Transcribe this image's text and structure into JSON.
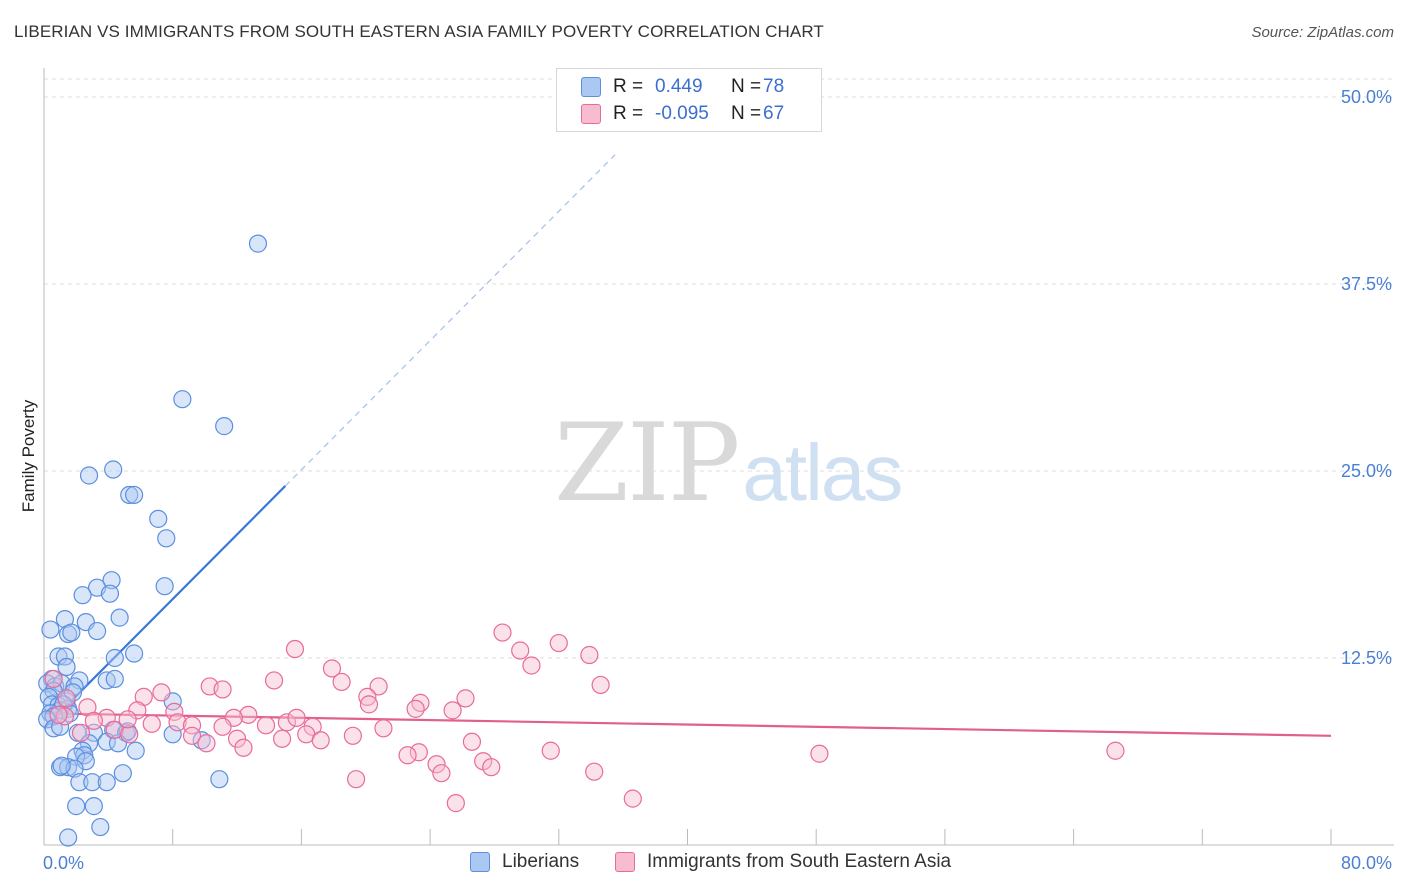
{
  "title": "LIBERIAN VS IMMIGRANTS FROM SOUTH EASTERN ASIA FAMILY POVERTY CORRELATION CHART",
  "source": "Source: ZipAtlas.com",
  "watermark": {
    "zip": "ZIP",
    "atlas": "atlas"
  },
  "colors": {
    "blue": "#5b8fe0",
    "blue_fill": "#aac8f2",
    "pink": "#e86b9a",
    "pink_fill": "#f7bcd0",
    "axis_text": "#4a7fd4"
  },
  "legend_top": {
    "rows": [
      {
        "r_label": "R =",
        "r_value": "0.449",
        "n_label": "N =",
        "n_value": "78"
      },
      {
        "r_label": "R =",
        "r_value": "-0.095",
        "n_label": "N =",
        "n_value": "67"
      }
    ]
  },
  "legend_bottom": {
    "series1": "Liberians",
    "series2": "Immigrants from South Eastern Asia"
  },
  "chart_data": {
    "type": "scatter",
    "title": "LIBERIAN VS IMMIGRANTS FROM SOUTH EASTERN ASIA FAMILY POVERTY CORRELATION CHART",
    "xlabel": "",
    "ylabel": "Family Poverty",
    "xlim": [
      0,
      80
    ],
    "ylim": [
      0,
      50
    ],
    "x_tick_labels": [
      "0.0%",
      "80.0%"
    ],
    "y_ticks": [
      12.5,
      25.0,
      37.5,
      50.0
    ],
    "y_tick_labels": [
      "12.5%",
      "25.0%",
      "37.5%",
      "50.0%"
    ],
    "grid": true,
    "series": [
      {
        "name": "Liberians",
        "r": 0.449,
        "n": 78,
        "trend": {
          "x0": 0,
          "y0": 7.8,
          "x1": 15.0,
          "y1": 24.0,
          "dashed_to_x": 35.5
        },
        "points": [
          [
            13.3,
            40.2
          ],
          [
            8.6,
            29.8
          ],
          [
            11.2,
            28.0
          ],
          [
            2.8,
            24.7
          ],
          [
            4.3,
            25.1
          ],
          [
            5.3,
            23.4
          ],
          [
            5.6,
            23.4
          ],
          [
            7.1,
            21.8
          ],
          [
            7.6,
            20.5
          ],
          [
            4.2,
            17.7
          ],
          [
            3.3,
            17.2
          ],
          [
            7.5,
            17.3
          ],
          [
            2.4,
            16.7
          ],
          [
            4.1,
            16.8
          ],
          [
            1.3,
            15.1
          ],
          [
            2.6,
            14.9
          ],
          [
            4.7,
            15.2
          ],
          [
            0.4,
            14.4
          ],
          [
            1.5,
            14.1
          ],
          [
            1.7,
            14.2
          ],
          [
            3.3,
            14.3
          ],
          [
            5.6,
            12.8
          ],
          [
            0.9,
            12.6
          ],
          [
            1.3,
            12.6
          ],
          [
            4.4,
            12.5
          ],
          [
            1.4,
            11.9
          ],
          [
            0.5,
            11.1
          ],
          [
            2.2,
            11.0
          ],
          [
            3.9,
            11.0
          ],
          [
            4.4,
            11.1
          ],
          [
            0.2,
            10.8
          ],
          [
            0.7,
            10.6
          ],
          [
            1.1,
            10.8
          ],
          [
            1.9,
            10.6
          ],
          [
            0.6,
            10.3
          ],
          [
            0.3,
            9.9
          ],
          [
            1.4,
            9.6
          ],
          [
            1.8,
            10.2
          ],
          [
            8.0,
            9.6
          ],
          [
            0.5,
            9.4
          ],
          [
            0.9,
            9.3
          ],
          [
            1.0,
            9.0
          ],
          [
            1.5,
            9.1
          ],
          [
            1.2,
            9.4
          ],
          [
            0.4,
            8.8
          ],
          [
            1.6,
            8.8
          ],
          [
            0.6,
            8.6
          ],
          [
            0.2,
            8.4
          ],
          [
            3.1,
            7.5
          ],
          [
            0.6,
            7.8
          ],
          [
            4.3,
            7.7
          ],
          [
            5.1,
            7.5
          ],
          [
            2.1,
            7.5
          ],
          [
            5.2,
            7.6
          ],
          [
            1.0,
            7.9
          ],
          [
            8.0,
            7.4
          ],
          [
            2.8,
            6.8
          ],
          [
            3.9,
            6.9
          ],
          [
            4.6,
            6.8
          ],
          [
            9.8,
            7.0
          ],
          [
            2.4,
            6.3
          ],
          [
            2.5,
            6.0
          ],
          [
            5.7,
            6.3
          ],
          [
            2.0,
            5.9
          ],
          [
            2.6,
            5.6
          ],
          [
            1.0,
            5.2
          ],
          [
            1.5,
            5.2
          ],
          [
            1.9,
            5.1
          ],
          [
            4.9,
            4.8
          ],
          [
            2.2,
            4.2
          ],
          [
            3.0,
            4.2
          ],
          [
            3.9,
            4.2
          ],
          [
            10.9,
            4.4
          ],
          [
            2.0,
            2.6
          ],
          [
            3.1,
            2.6
          ],
          [
            3.5,
            1.2
          ],
          [
            1.5,
            0.5
          ],
          [
            1.1,
            5.3
          ]
        ]
      },
      {
        "name": "Immigrants from South Eastern Asia",
        "r": -0.095,
        "n": 67,
        "trend": {
          "x0": 0,
          "y0": 8.8,
          "x1": 80,
          "y1": 7.3
        },
        "points": [
          [
            28.5,
            14.2
          ],
          [
            32.0,
            13.5
          ],
          [
            15.6,
            13.1
          ],
          [
            29.6,
            13.0
          ],
          [
            33.9,
            12.7
          ],
          [
            30.3,
            12.0
          ],
          [
            17.9,
            11.8
          ],
          [
            14.3,
            11.0
          ],
          [
            18.5,
            10.9
          ],
          [
            20.8,
            10.6
          ],
          [
            34.6,
            10.7
          ],
          [
            10.3,
            10.6
          ],
          [
            11.1,
            10.4
          ],
          [
            7.3,
            10.2
          ],
          [
            6.2,
            9.9
          ],
          [
            20.1,
            9.9
          ],
          [
            26.2,
            9.8
          ],
          [
            23.4,
            9.5
          ],
          [
            20.2,
            9.4
          ],
          [
            23.1,
            9.1
          ],
          [
            25.4,
            9.0
          ],
          [
            2.7,
            9.2
          ],
          [
            5.8,
            9.0
          ],
          [
            8.1,
            8.9
          ],
          [
            12.7,
            8.7
          ],
          [
            1.3,
            8.6
          ],
          [
            11.8,
            8.5
          ],
          [
            3.9,
            8.5
          ],
          [
            3.1,
            8.3
          ],
          [
            15.1,
            8.2
          ],
          [
            6.7,
            8.1
          ],
          [
            8.3,
            8.2
          ],
          [
            9.2,
            8.0
          ],
          [
            11.1,
            7.9
          ],
          [
            13.8,
            8.0
          ],
          [
            16.7,
            7.9
          ],
          [
            21.1,
            7.8
          ],
          [
            4.4,
            7.7
          ],
          [
            2.3,
            7.5
          ],
          [
            16.3,
            7.4
          ],
          [
            19.2,
            7.3
          ],
          [
            5.3,
            7.4
          ],
          [
            9.2,
            7.3
          ],
          [
            12.0,
            7.1
          ],
          [
            14.8,
            7.1
          ],
          [
            17.2,
            7.0
          ],
          [
            26.6,
            6.9
          ],
          [
            10.1,
            6.8
          ],
          [
            12.4,
            6.5
          ],
          [
            23.3,
            6.2
          ],
          [
            22.6,
            6.0
          ],
          [
            31.5,
            6.3
          ],
          [
            48.2,
            6.1
          ],
          [
            66.6,
            6.3
          ],
          [
            27.3,
            5.6
          ],
          [
            27.8,
            5.2
          ],
          [
            24.4,
            5.4
          ],
          [
            24.7,
            4.8
          ],
          [
            34.2,
            4.9
          ],
          [
            19.4,
            4.4
          ],
          [
            36.6,
            3.1
          ],
          [
            25.6,
            2.8
          ],
          [
            5.2,
            8.4
          ],
          [
            0.6,
            11.1
          ],
          [
            1.4,
            9.8
          ],
          [
            0.9,
            8.7
          ],
          [
            15.7,
            8.5
          ]
        ]
      }
    ]
  },
  "axes": {
    "ylabel": "Family Poverty",
    "x_left_label": "0.0%",
    "x_right_label": "80.0%"
  }
}
